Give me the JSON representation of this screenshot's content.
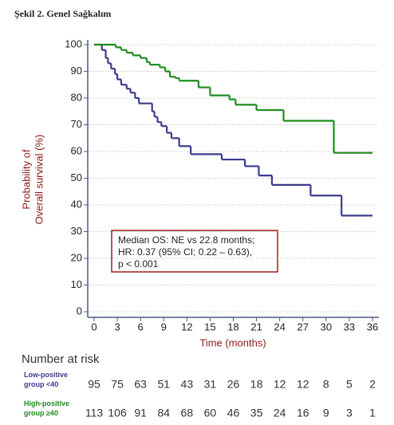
{
  "chart_data": {
    "type": "step",
    "title": "Şekil 2. Genel Sağkalım",
    "ylabel": [
      "Probability of",
      "Overall survival (%)"
    ],
    "xlabel": "Time (months)",
    "xlim": [
      0,
      36
    ],
    "ylim": [
      0,
      100
    ],
    "xticks": [
      0,
      3,
      6,
      9,
      12,
      15,
      18,
      21,
      24,
      27,
      30,
      33,
      36
    ],
    "yticks": [
      0,
      10,
      20,
      30,
      40,
      50,
      60,
      70,
      80,
      90,
      100
    ],
    "grid": true,
    "annotation": [
      "Median OS: NE vs 22.8 months;",
      "HR: 0.37 (95% CI; 0.22 – 0.63),",
      "p < 0.001"
    ],
    "series": [
      {
        "name": "Low-positive group <40",
        "color": "#3b3b8f",
        "x": [
          0,
          1,
          1.5,
          1.8,
          2.2,
          2.7,
          3,
          3.5,
          4.2,
          4.7,
          5.3,
          5.8,
          7.5,
          7.8,
          8.2,
          8.7,
          9.4,
          10,
          11,
          12.5,
          16.5,
          19.5,
          21.3,
          23,
          28,
          32,
          36
        ],
        "values": [
          100,
          98,
          95,
          93,
          91,
          89,
          87,
          85,
          83.5,
          82,
          80,
          78,
          75,
          73,
          71,
          69.5,
          67,
          65,
          62,
          59,
          57,
          54.5,
          51,
          47.5,
          43.5,
          36,
          36
        ]
      },
      {
        "name": "High-positive group ≥40",
        "color": "#1f8c1f",
        "x": [
          0,
          2.8,
          3.5,
          4.2,
          5,
          6,
          6.8,
          7.2,
          8.5,
          9.2,
          9.8,
          10.5,
          11,
          13.5,
          15,
          17.5,
          18.3,
          21,
          24.5,
          31,
          36
        ],
        "values": [
          100,
          99,
          98,
          97,
          96,
          95,
          93.5,
          92.5,
          91.5,
          90,
          88,
          87.5,
          86.5,
          84,
          81,
          79.5,
          77.5,
          75.5,
          71.5,
          59.5,
          59.5
        ]
      }
    ],
    "number_at_risk": {
      "title": "Number at risk",
      "rows": [
        [
          95,
          75,
          63,
          51,
          43,
          31,
          26,
          18,
          12,
          12,
          8,
          5,
          2
        ],
        [
          113,
          106,
          91,
          84,
          68,
          60,
          46,
          35,
          24,
          16,
          9,
          3,
          1
        ]
      ]
    }
  }
}
